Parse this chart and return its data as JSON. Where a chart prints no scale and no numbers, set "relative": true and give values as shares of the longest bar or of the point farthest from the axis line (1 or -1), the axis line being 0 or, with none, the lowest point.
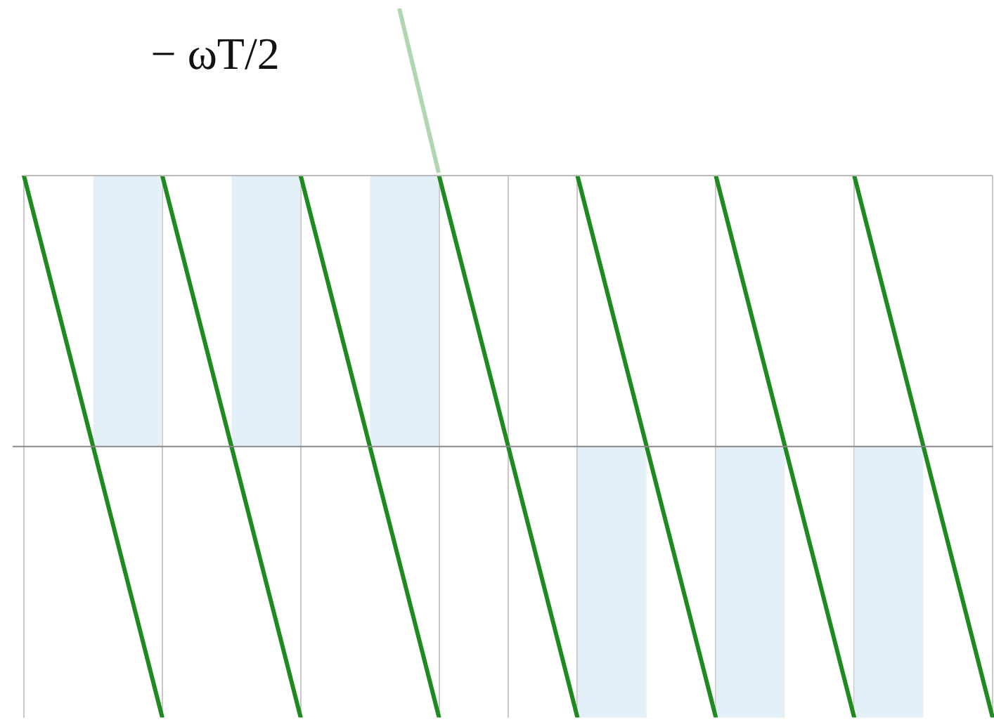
{
  "chart_data": {
    "type": "line",
    "relative": true,
    "categories": [
      null,
      null,
      null,
      null,
      null,
      null,
      null,
      null,
      null,
      null,
      null,
      null,
      null,
      null,
      null
    ],
    "grid": "x",
    "legend": false,
    "marker": "none",
    "line_style": "solid",
    "annotations": [
      "− ωT/2"
    ],
    "series": [
      {
        "type": "area",
        "color": "#e3f0f8",
        "values": [
          null,
          1,
          1,
          null,
          null,
          null,
          null,
          null,
          null,
          null,
          null,
          null,
          null,
          null,
          null
        ]
      },
      {
        "type": "area",
        "color": "#e3f0f8",
        "values": [
          null,
          null,
          null,
          1,
          1,
          null,
          null,
          null,
          null,
          null,
          null,
          null,
          null,
          null,
          null
        ]
      },
      {
        "type": "area",
        "color": "#e3f0f8",
        "values": [
          null,
          null,
          null,
          null,
          null,
          1,
          1,
          null,
          null,
          null,
          null,
          null,
          null,
          null,
          null
        ]
      },
      {
        "type": "area",
        "color": "#e3f0f8",
        "values": [
          null,
          null,
          null,
          null,
          null,
          null,
          null,
          null,
          -1,
          -1,
          null,
          null,
          null,
          null,
          null
        ]
      },
      {
        "type": "area",
        "color": "#e3f0f8",
        "values": [
          null,
          null,
          null,
          null,
          null,
          null,
          null,
          null,
          null,
          null,
          -1,
          -1,
          null,
          null,
          null
        ]
      },
      {
        "type": "area",
        "color": "#e3f0f8",
        "values": [
          null,
          null,
          null,
          null,
          null,
          null,
          null,
          null,
          null,
          null,
          null,
          null,
          -1,
          -1,
          null
        ]
      },
      {
        "color": "#1f8a1f",
        "values": [
          1,
          0,
          -1,
          null,
          null,
          null,
          null,
          null,
          null,
          null,
          null,
          null,
          null,
          null,
          null
        ]
      },
      {
        "color": "#1f8a1f",
        "values": [
          null,
          null,
          1,
          0,
          -1,
          null,
          null,
          null,
          null,
          null,
          null,
          null,
          null,
          null,
          null
        ]
      },
      {
        "color": "#1f8a1f",
        "values": [
          null,
          null,
          null,
          null,
          1,
          0,
          -1,
          null,
          null,
          null,
          null,
          null,
          null,
          null,
          null
        ]
      },
      {
        "color": "#1f8a1f",
        "values": [
          null,
          null,
          null,
          null,
          null,
          null,
          1,
          0,
          -1,
          null,
          null,
          null,
          null,
          null,
          null
        ]
      },
      {
        "color": "#1f8a1f",
        "values": [
          null,
          null,
          null,
          null,
          null,
          null,
          null,
          null,
          1,
          0,
          -1,
          null,
          null,
          null,
          null
        ]
      },
      {
        "color": "#1f8a1f",
        "values": [
          null,
          null,
          null,
          null,
          null,
          null,
          null,
          null,
          null,
          null,
          1,
          0,
          -1,
          null,
          null
        ]
      },
      {
        "color": "#1f8a1f",
        "values": [
          null,
          null,
          null,
          null,
          null,
          null,
          null,
          null,
          null,
          null,
          null,
          null,
          1,
          0,
          -1
        ]
      }
    ]
  }
}
